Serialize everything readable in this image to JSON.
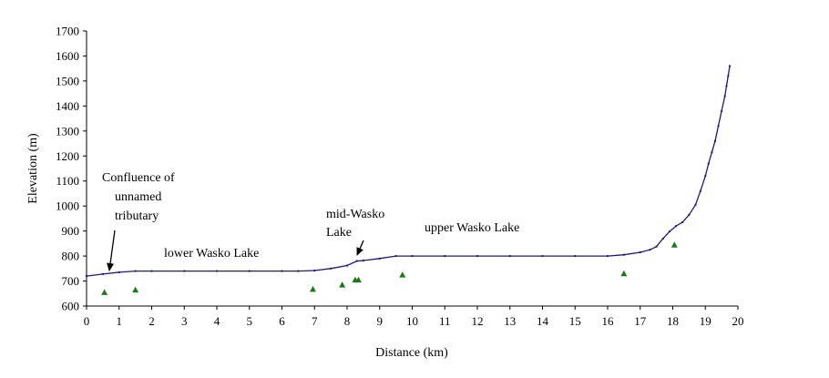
{
  "chart_data": {
    "type": "line",
    "xlabel": "Distance (km)",
    "ylabel": "Elevation (m)",
    "xlim": [
      0,
      20
    ],
    "ylim": [
      600,
      1700
    ],
    "xticks": [
      0,
      1,
      2,
      3,
      4,
      5,
      6,
      7,
      8,
      9,
      10,
      11,
      12,
      13,
      14,
      15,
      16,
      17,
      18,
      19,
      20
    ],
    "yticks": [
      600,
      700,
      800,
      900,
      1000,
      1100,
      1200,
      1300,
      1400,
      1500,
      1600,
      1700
    ],
    "grid": false,
    "colors": {
      "line": "#1a1a80",
      "markers": "#1a7a1a"
    },
    "series": [
      {
        "kind": "line",
        "points": [
          [
            0,
            720
          ],
          [
            0.5,
            728
          ],
          [
            1.0,
            735
          ],
          [
            1.5,
            740
          ],
          [
            2.0,
            740
          ],
          [
            3.0,
            740
          ],
          [
            4.0,
            740
          ],
          [
            5.0,
            740
          ],
          [
            6.0,
            740
          ],
          [
            6.5,
            740
          ],
          [
            7.0,
            742
          ],
          [
            7.5,
            750
          ],
          [
            8.0,
            762
          ],
          [
            8.3,
            780
          ],
          [
            8.5,
            782
          ],
          [
            9.0,
            790
          ],
          [
            9.5,
            800
          ],
          [
            10.0,
            800
          ],
          [
            11.0,
            800
          ],
          [
            12.0,
            800
          ],
          [
            13.0,
            800
          ],
          [
            14.0,
            800
          ],
          [
            15.0,
            800
          ],
          [
            16.0,
            800
          ],
          [
            16.5,
            805
          ],
          [
            17.0,
            815
          ],
          [
            17.3,
            825
          ],
          [
            17.5,
            838
          ],
          [
            17.7,
            870
          ],
          [
            17.9,
            898
          ],
          [
            18.1,
            920
          ],
          [
            18.3,
            935
          ],
          [
            18.5,
            965
          ],
          [
            18.7,
            1005
          ],
          [
            18.85,
            1060
          ],
          [
            19.0,
            1120
          ],
          [
            19.1,
            1170
          ],
          [
            19.2,
            1215
          ],
          [
            19.3,
            1260
          ],
          [
            19.4,
            1320
          ],
          [
            19.5,
            1380
          ],
          [
            19.6,
            1440
          ],
          [
            19.65,
            1480
          ],
          [
            19.7,
            1520
          ],
          [
            19.75,
            1560
          ]
        ]
      },
      {
        "kind": "scatter",
        "marker": "triangle",
        "points": [
          [
            0.55,
            655
          ],
          [
            1.5,
            665
          ],
          [
            6.95,
            668
          ],
          [
            7.85,
            685
          ],
          [
            8.25,
            705
          ],
          [
            8.35,
            705
          ],
          [
            9.7,
            725
          ],
          [
            16.5,
            730
          ],
          [
            18.05,
            845
          ]
        ]
      }
    ],
    "annotations": [
      {
        "lines": [
          "Confluence of",
          "unnamed",
          "tributary"
        ],
        "arrow_to": [
          0.75,
          735
        ]
      },
      {
        "lines": [
          "lower Wasko Lake"
        ]
      },
      {
        "lines": [
          "mid-Wasko",
          "Lake"
        ],
        "arrow_to": [
          8.35,
          782
        ]
      },
      {
        "lines": [
          "upper Wasko Lake"
        ]
      }
    ]
  }
}
